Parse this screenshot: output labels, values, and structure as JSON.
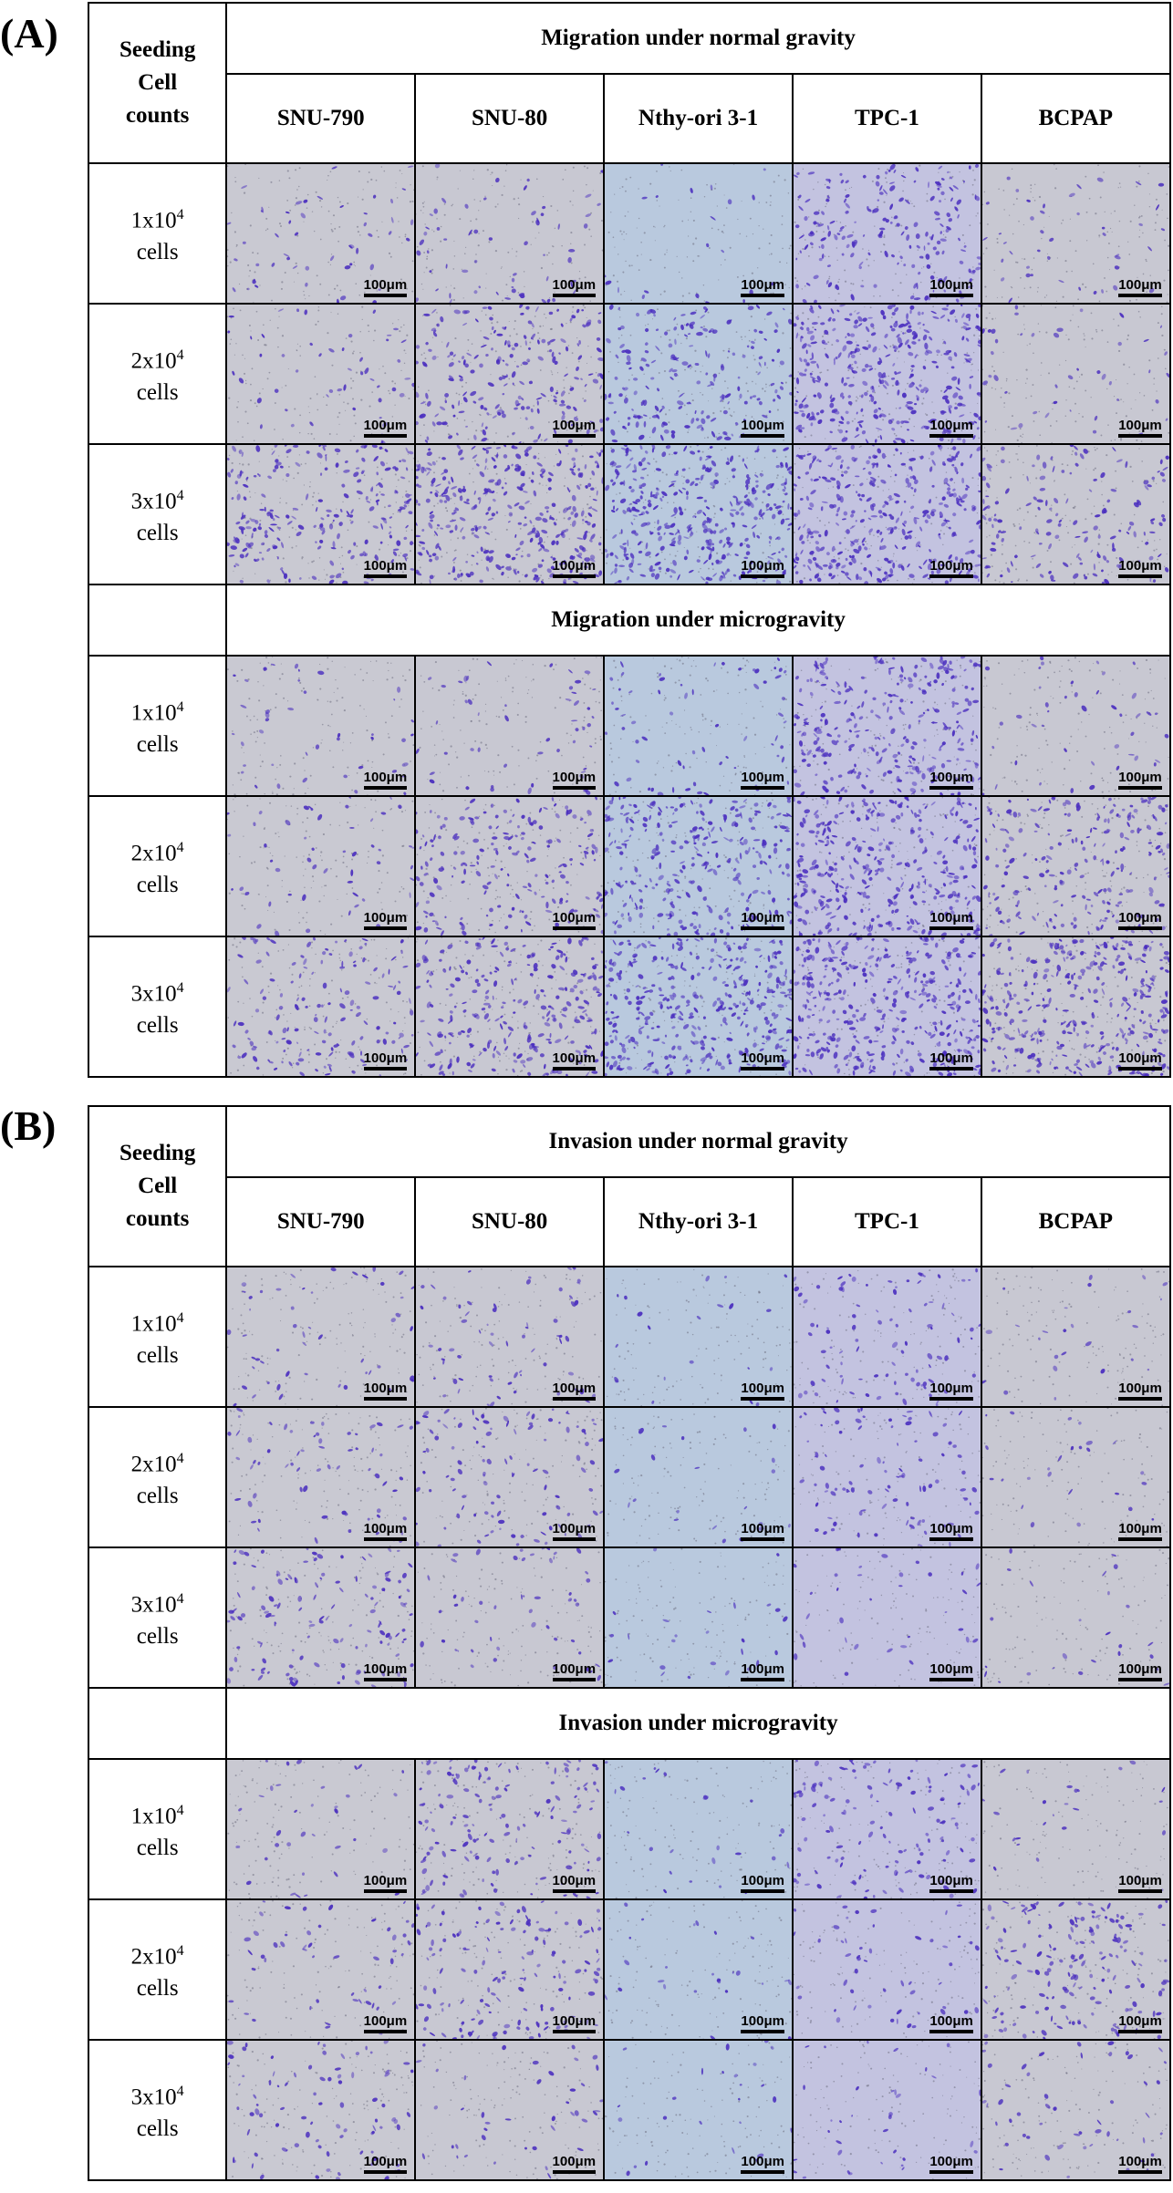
{
  "panels": [
    {
      "label": "(A)",
      "corner_lines": [
        "Seeding",
        "Cell",
        "counts"
      ],
      "columns": [
        "SNU-790",
        "SNU-80",
        "Nthy-ori 3-1",
        "TPC-1",
        "BCPAP"
      ],
      "sections": [
        {
          "title": "Migration under normal gravity",
          "rows": [
            {
              "count": "1x10",
              "exp": "4",
              "unit": "cells",
              "density": [
                0.12,
                0.14,
                0.05,
                0.45,
                0.1
              ]
            },
            {
              "count": "2x10",
              "exp": "4",
              "unit": "cells",
              "density": [
                0.12,
                0.5,
                0.45,
                0.8,
                0.1
              ]
            },
            {
              "count": "3x10",
              "exp": "4",
              "unit": "cells",
              "density": [
                0.55,
                0.8,
                0.85,
                0.8,
                0.35
              ]
            }
          ]
        },
        {
          "title": "Migration under microgravity",
          "rows": [
            {
              "count": "1x10",
              "exp": "4",
              "unit": "cells",
              "density": [
                0.1,
                0.12,
                0.15,
                0.65,
                0.1
              ]
            },
            {
              "count": "2x10",
              "exp": "4",
              "unit": "cells",
              "density": [
                0.12,
                0.45,
                0.65,
                0.8,
                0.5
              ]
            },
            {
              "count": "3x10",
              "exp": "4",
              "unit": "cells",
              "density": [
                0.35,
                0.6,
                0.85,
                0.85,
                0.8
              ]
            }
          ]
        }
      ]
    },
    {
      "label": "(B)",
      "corner_lines": [
        "Seeding",
        "Cell",
        "counts"
      ],
      "columns": [
        "SNU-790",
        "SNU-80",
        "Nthy-ori 3-1",
        "TPC-1",
        "BCPAP"
      ],
      "sections": [
        {
          "title": "Invasion under normal gravity",
          "rows": [
            {
              "count": "1x10",
              "exp": "4",
              "unit": "cells",
              "density": [
                0.12,
                0.15,
                0.05,
                0.22,
                0.06
              ]
            },
            {
              "count": "2x10",
              "exp": "4",
              "unit": "cells",
              "density": [
                0.15,
                0.25,
                0.05,
                0.22,
                0.06
              ]
            },
            {
              "count": "3x10",
              "exp": "4",
              "unit": "cells",
              "density": [
                0.3,
                0.12,
                0.06,
                0.08,
                0.06
              ]
            }
          ]
        },
        {
          "title": "Invasion under microgravity",
          "rows": [
            {
              "count": "1x10",
              "exp": "4",
              "unit": "cells",
              "density": [
                0.08,
                0.35,
                0.06,
                0.3,
                0.06
              ]
            },
            {
              "count": "2x10",
              "exp": "4",
              "unit": "cells",
              "density": [
                0.12,
                0.35,
                0.06,
                0.12,
                0.4
              ]
            },
            {
              "count": "3x10",
              "exp": "4",
              "unit": "cells",
              "density": [
                0.2,
                0.1,
                0.06,
                0.08,
                0.12
              ]
            }
          ]
        }
      ]
    }
  ],
  "scale_bar_label": "100μm",
  "colors": {
    "stain": "#4b2fbf",
    "background_by_column": [
      "#c9c9d2",
      "#c8c8d2",
      "#b9c9de",
      "#c3c3e0",
      "#c8c8d2"
    ]
  }
}
